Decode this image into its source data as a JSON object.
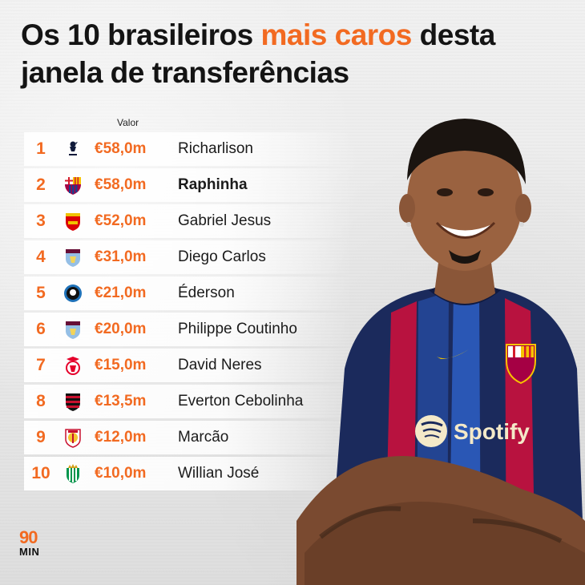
{
  "headline": {
    "part1": "Os 10 brasileiros ",
    "accent": "mais caros",
    "part2": " desta janela de transferências",
    "accent_color": "#f26a21"
  },
  "column_label": "Valor",
  "rows": [
    {
      "rank": "1",
      "value": "€58,0m",
      "name": "Richarlison",
      "club_icon": "tottenham-crest-icon"
    },
    {
      "rank": "2",
      "value": "€58,0m",
      "name": "Raphinha",
      "club_icon": "barcelona-crest-icon"
    },
    {
      "rank": "3",
      "value": "€52,0m",
      "name": "Gabriel Jesus",
      "club_icon": "arsenal-crest-icon"
    },
    {
      "rank": "4",
      "value": "€31,0m",
      "name": "Diego Carlos",
      "club_icon": "aston-villa-crest-icon"
    },
    {
      "rank": "5",
      "value": "€21,0m",
      "name": "Éderson",
      "club_icon": "atalanta-crest-icon"
    },
    {
      "rank": "6",
      "value": "€20,0m",
      "name": "Philippe Coutinho",
      "club_icon": "aston-villa-crest-icon"
    },
    {
      "rank": "7",
      "value": "€15,0m",
      "name": "David Neres",
      "club_icon": "benfica-crest-icon"
    },
    {
      "rank": "8",
      "value": "€13,5m",
      "name": "Everton Cebolinha",
      "club_icon": "flamengo-crest-icon"
    },
    {
      "rank": "9",
      "value": "€12,0m",
      "name": "Marcão",
      "club_icon": "sevilla-crest-icon"
    },
    {
      "rank": "10",
      "value": "€10,0m",
      "name": "Willian José",
      "club_icon": "real-betis-crest-icon"
    }
  ],
  "brand": {
    "number": "90",
    "word": "MIN"
  },
  "shirt_sponsor": "Spotify"
}
